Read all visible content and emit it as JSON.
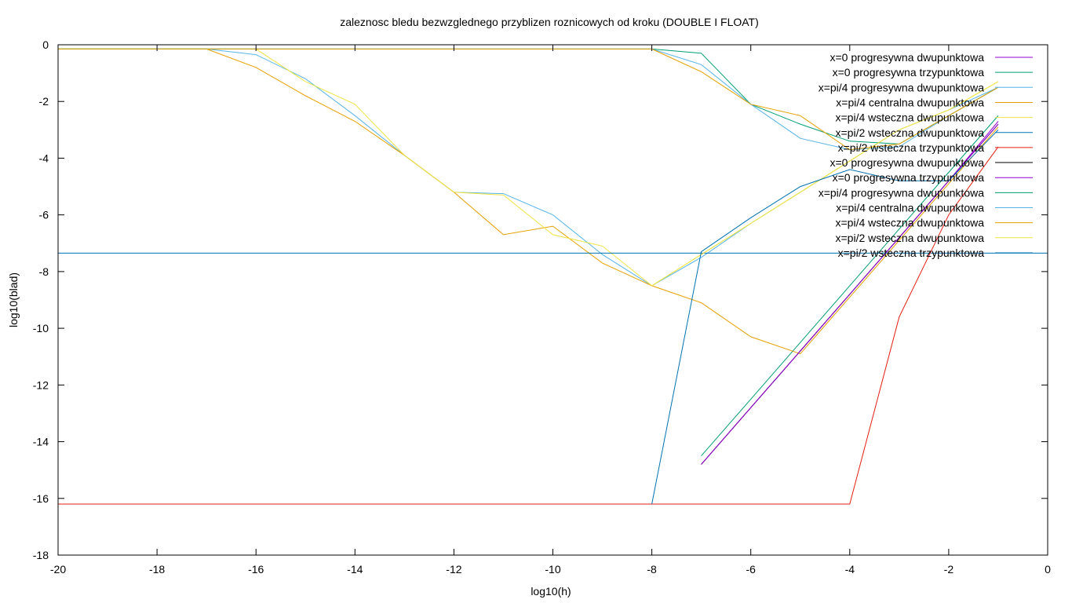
{
  "chart_data": {
    "type": "line",
    "title": "zaleznosc bledu bezwzglednego przyblizen roznicowych od kroku (DOUBLE I FLOAT)",
    "xlabel": "log10(h)",
    "ylabel": "log10(blad)",
    "xlim": [
      -20,
      0
    ],
    "ylim": [
      -18,
      0
    ],
    "xticks": [
      -20,
      -18,
      -16,
      -14,
      -12,
      -10,
      -8,
      -6,
      -4,
      -2,
      0
    ],
    "yticks": [
      0,
      -2,
      -4,
      -6,
      -8,
      -10,
      -12,
      -14,
      -16,
      -18
    ],
    "grid": false,
    "legend_position": "top-right",
    "series": [
      {
        "name": "x=0 progresywna dwupunktowa",
        "color": "#9400d3",
        "points": [
          [
            -7,
            -14.8
          ],
          [
            -6,
            -12.8
          ],
          [
            -5,
            -10.8
          ],
          [
            -4,
            -8.8
          ],
          [
            -3,
            -6.8
          ],
          [
            -2,
            -4.8
          ],
          [
            -1,
            -2.7
          ]
        ]
      },
      {
        "name": "x=0 progresywna trzypunktowa",
        "color": "#009e73",
        "points": [
          [
            -7,
            -14.5
          ],
          [
            -6,
            -12.5
          ],
          [
            -5,
            -10.5
          ],
          [
            -4,
            -8.5
          ],
          [
            -3,
            -6.5
          ],
          [
            -2,
            -4.5
          ],
          [
            -1,
            -2.5
          ]
        ]
      },
      {
        "name": "x=pi/4 progresywna dwupunktowa",
        "color": "#56b4e9",
        "points": [
          [
            -20,
            -0.15
          ],
          [
            -17,
            -0.15
          ],
          [
            -16,
            -0.35
          ],
          [
            -15,
            -1.2
          ],
          [
            -14,
            -2.5
          ],
          [
            -13,
            -3.9
          ],
          [
            -12,
            -5.2
          ],
          [
            -11,
            -5.25
          ],
          [
            -10,
            -6.0
          ],
          [
            -9,
            -7.4
          ],
          [
            -8,
            -8.5
          ],
          [
            -7,
            -7.5
          ],
          [
            -6,
            -6.3
          ],
          [
            -5,
            -5.2
          ],
          [
            -4,
            -4.1
          ],
          [
            -3,
            -3.0
          ],
          [
            -2,
            -2.3
          ],
          [
            -1,
            -1.5
          ]
        ]
      },
      {
        "name": "x=pi/4 centralna dwupunktowa",
        "color": "#e69f00",
        "points": [
          [
            -20,
            -0.15
          ],
          [
            -17,
            -0.15
          ],
          [
            -16,
            -0.8
          ],
          [
            -15,
            -1.8
          ],
          [
            -14,
            -2.7
          ],
          [
            -13,
            -3.9
          ],
          [
            -12,
            -5.2
          ],
          [
            -11,
            -6.7
          ],
          [
            -10,
            -6.4
          ],
          [
            -9,
            -7.7
          ],
          [
            -8,
            -8.5
          ],
          [
            -7,
            -9.1
          ],
          [
            -6,
            -10.3
          ],
          [
            -5,
            -10.9
          ],
          [
            -4,
            -8.9
          ],
          [
            -3,
            -6.9
          ],
          [
            -2,
            -4.9
          ],
          [
            -1,
            -2.9
          ]
        ]
      },
      {
        "name": "x=pi/4 wsteczna dwupunktowa",
        "color": "#f0e442",
        "points": [
          [
            -20,
            -0.15
          ],
          [
            -16,
            -0.15
          ],
          [
            -15,
            -1.3
          ],
          [
            -14,
            -2.1
          ],
          [
            -13,
            -3.9
          ],
          [
            -12,
            -5.2
          ],
          [
            -11,
            -5.3
          ],
          [
            -10,
            -6.7
          ],
          [
            -9,
            -7.1
          ],
          [
            -8,
            -8.5
          ],
          [
            -7,
            -7.4
          ],
          [
            -6,
            -6.3
          ],
          [
            -5,
            -5.2
          ],
          [
            -4,
            -4.1
          ],
          [
            -3,
            -3.0
          ],
          [
            -2,
            -2.3
          ],
          [
            -1,
            -1.3
          ]
        ]
      },
      {
        "name": "x=pi/2 wsteczna dwupunktowa",
        "color": "#0072b2",
        "points": [
          [
            -20,
            -7.35
          ],
          [
            0,
            -7.35
          ]
        ]
      },
      {
        "name": "x=pi/2 wsteczna trzypunktowa",
        "color": "#e51e10",
        "points": [
          [
            -20,
            -16.2
          ],
          [
            -4,
            -16.2
          ],
          [
            -3,
            -9.6
          ],
          [
            -2,
            -6.0
          ],
          [
            -1,
            -3.6
          ]
        ]
      },
      {
        "name": "x=0 progresywna dwupunktowa",
        "color": "#000000",
        "points": [
          [
            -7,
            -14.8
          ],
          [
            -6,
            -12.8
          ],
          [
            -5,
            -10.8
          ],
          [
            -4,
            -8.8
          ],
          [
            -3,
            -6.8
          ],
          [
            -2,
            -4.8
          ],
          [
            -1,
            -2.8
          ]
        ]
      },
      {
        "name": "x=0 progresywna trzypunktowa",
        "color": "#9400d3",
        "points": [
          [
            -7,
            -14.8
          ],
          [
            -6,
            -12.8
          ],
          [
            -5,
            -10.8
          ],
          [
            -4,
            -8.8
          ],
          [
            -3,
            -6.8
          ],
          [
            -2,
            -4.8
          ],
          [
            -1,
            -2.8
          ]
        ]
      },
      {
        "name": "x=pi/4 progresywna dwupunktowa",
        "color": "#009e73",
        "points": [
          [
            -20,
            -0.15
          ],
          [
            -8,
            -0.15
          ],
          [
            -7,
            -0.3
          ],
          [
            -6,
            -2.1
          ],
          [
            -5,
            -2.8
          ],
          [
            -4,
            -3.4
          ],
          [
            -3,
            -3.5
          ],
          [
            -2,
            -2.5
          ],
          [
            -1,
            -1.5
          ]
        ]
      },
      {
        "name": "x=pi/4 centralna dwupunktowa",
        "color": "#56b4e9",
        "points": [
          [
            -20,
            -0.15
          ],
          [
            -8,
            -0.15
          ],
          [
            -7,
            -0.7
          ],
          [
            -6,
            -2.1
          ],
          [
            -5,
            -3.3
          ],
          [
            -4,
            -3.7
          ],
          [
            -3,
            -3.6
          ],
          [
            -2,
            -2.5
          ],
          [
            -1,
            -1.5
          ]
        ]
      },
      {
        "name": "x=pi/4 wsteczna dwupunktowa",
        "color": "#e69f00",
        "points": [
          [
            -20,
            -0.15
          ],
          [
            -8,
            -0.15
          ],
          [
            -7,
            -0.95
          ],
          [
            -6,
            -2.1
          ],
          [
            -5,
            -2.5
          ],
          [
            -4,
            -3.7
          ],
          [
            -3,
            -3.5
          ],
          [
            -2,
            -2.5
          ],
          [
            -1,
            -1.5
          ]
        ]
      },
      {
        "name": "x=pi/2 wsteczna dwupunktowa",
        "color": "#f0e442",
        "points": [
          [
            -8,
            -8.5
          ],
          [
            -7,
            -7.4
          ],
          [
            -6,
            -6.3
          ],
          [
            -5,
            -5.2
          ],
          [
            -4,
            -4.1
          ],
          [
            -3,
            -3.0
          ],
          [
            -2,
            -2.3
          ],
          [
            -1,
            -1.3
          ]
        ]
      },
      {
        "name": "x=pi/2 wsteczna trzypunktowa",
        "color": "#0072b2",
        "points": [
          [
            -8,
            -16.2
          ],
          [
            -7,
            -7.3
          ],
          [
            -6,
            -6.1
          ],
          [
            -5,
            -5.0
          ],
          [
            -4,
            -4.4
          ],
          [
            -3,
            -4.8
          ],
          [
            -2,
            -4.8
          ],
          [
            -1,
            -3.0
          ]
        ]
      }
    ]
  }
}
